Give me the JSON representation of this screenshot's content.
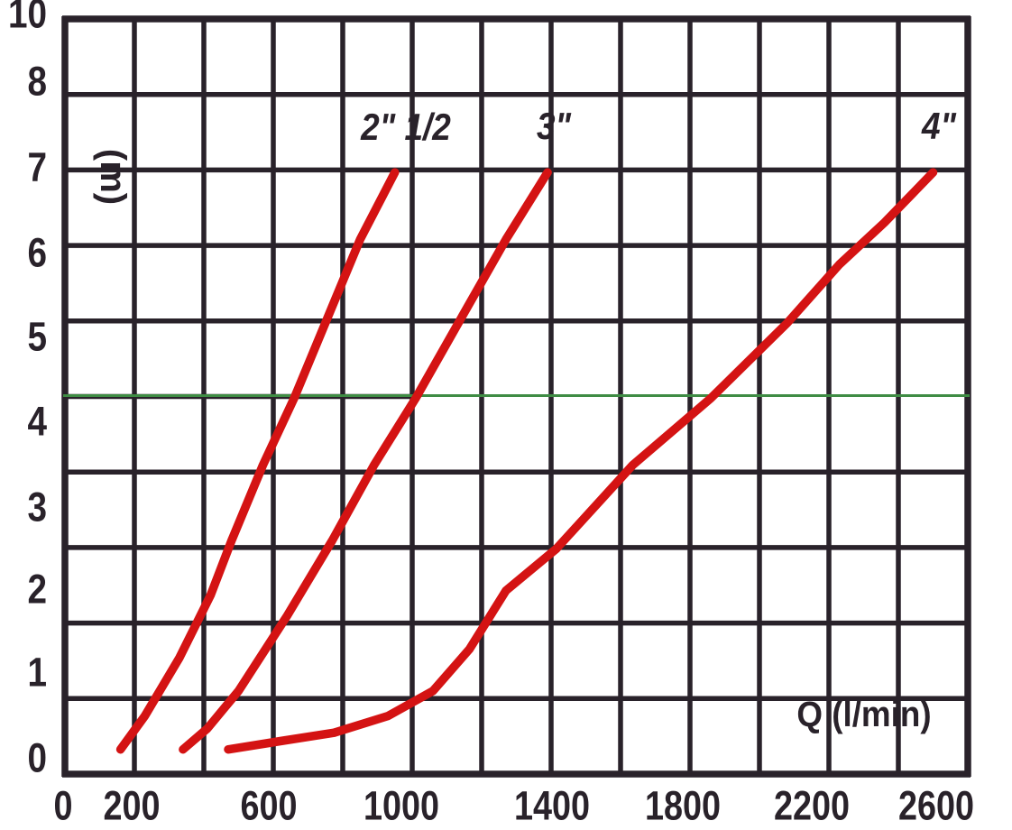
{
  "chart_data": {
    "type": "line",
    "title": "",
    "xlabel": "Q (l/min)",
    "ylabel": "(m)",
    "xlim": [
      0,
      2600
    ],
    "ylim": [
      0,
      10
    ],
    "grid": "on",
    "x_grid_interval_l_min": 200,
    "y_grid_interval_m": 1,
    "x_tick_labels": [
      "0",
      "200",
      "600",
      "1000",
      "1400",
      "1800",
      "2200",
      "2600"
    ],
    "y_tick_labels": [
      "10",
      "8",
      "7",
      "6",
      "5",
      "4",
      "3",
      "2",
      "1",
      "0"
    ],
    "curve_color": "#d41313",
    "grid_color": "#29222a",
    "series": [
      {
        "name": "2\" 1/2",
        "color": "#d41313",
        "points_q_h": [
          [
            160,
            0.1
          ],
          [
            230,
            0.5
          ],
          [
            330,
            1.2
          ],
          [
            420,
            1.95
          ],
          [
            480,
            2.6
          ],
          [
            570,
            3.5
          ],
          [
            660,
            4.3
          ],
          [
            760,
            5.3
          ],
          [
            850,
            6.2
          ],
          [
            950,
            7.0
          ]
        ]
      },
      {
        "name": "3\"",
        "color": "#d41313",
        "points_q_h": [
          [
            340,
            0.1
          ],
          [
            410,
            0.35
          ],
          [
            500,
            0.8
          ],
          [
            640,
            1.7
          ],
          [
            770,
            2.6
          ],
          [
            890,
            3.5
          ],
          [
            1010,
            4.3
          ],
          [
            1140,
            5.25
          ],
          [
            1270,
            6.2
          ],
          [
            1390,
            7.0
          ]
        ]
      },
      {
        "name": "4\"",
        "color": "#d41313",
        "points_q_h": [
          [
            470,
            0.1
          ],
          [
            620,
            0.2
          ],
          [
            775,
            0.3
          ],
          [
            930,
            0.5
          ],
          [
            1060,
            0.8
          ],
          [
            1165,
            1.3
          ],
          [
            1270,
            2.0
          ],
          [
            1415,
            2.5
          ],
          [
            1635,
            3.5
          ],
          [
            1860,
            4.3
          ],
          [
            2080,
            5.2
          ],
          [
            2230,
            5.9
          ],
          [
            2360,
            6.4
          ],
          [
            2500,
            7.0
          ]
        ]
      }
    ],
    "reference_line": {
      "orientation": "horizontal",
      "value_m": 4.3,
      "color": "#3f8c44"
    }
  }
}
